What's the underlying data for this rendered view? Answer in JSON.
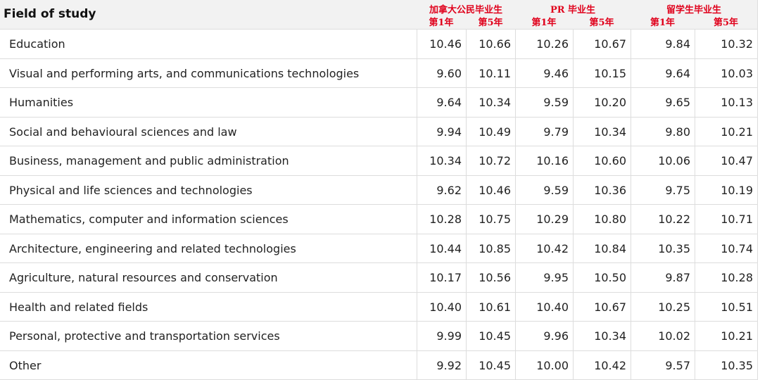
{
  "header": {
    "title": "Field of study",
    "groups": [
      {
        "label": "加拿大公民毕业生",
        "sub": [
          "第1年",
          "第5年"
        ]
      },
      {
        "label": "PR 毕业生",
        "sub": [
          "第1年",
          "第5年"
        ]
      },
      {
        "label": "留学生毕业生",
        "sub": [
          "第1年",
          "第5年"
        ]
      }
    ]
  },
  "table": {
    "rows": [
      [
        "Education",
        "10.46",
        "10.66",
        "10.26",
        "10.67",
        "9.84",
        "10.32"
      ],
      [
        "Visual and performing arts, and communications technologies",
        "9.60",
        "10.11",
        "9.46",
        "10.15",
        "9.64",
        "10.03"
      ],
      [
        "Humanities",
        "9.64",
        "10.34",
        "9.59",
        "10.20",
        "9.65",
        "10.13"
      ],
      [
        "Social and behavioural sciences and law",
        "9.94",
        "10.49",
        "9.79",
        "10.34",
        "9.80",
        "10.21"
      ],
      [
        "Business, management and public administration",
        "10.34",
        "10.72",
        "10.16",
        "10.60",
        "10.06",
        "10.47"
      ],
      [
        "Physical and life sciences and technologies",
        "9.62",
        "10.46",
        "9.59",
        "10.36",
        "9.75",
        "10.19"
      ],
      [
        "Mathematics, computer and information sciences",
        "10.28",
        "10.75",
        "10.29",
        "10.80",
        "10.22",
        "10.71"
      ],
      [
        "Architecture, engineering and related technologies",
        "10.44",
        "10.85",
        "10.42",
        "10.84",
        "10.35",
        "10.74"
      ],
      [
        "Agriculture, natural resources and conservation",
        "10.17",
        "10.56",
        "9.95",
        "10.50",
        "9.87",
        "10.28"
      ],
      [
        "Health and related fields",
        "10.40",
        "10.61",
        "10.40",
        "10.67",
        "10.25",
        "10.51"
      ],
      [
        "Personal, protective and transportation services",
        "9.99",
        "10.45",
        "9.96",
        "10.34",
        "10.02",
        "10.21"
      ],
      [
        "Other",
        "9.92",
        "10.45",
        "10.00",
        "10.42",
        "9.57",
        "10.35"
      ]
    ]
  }
}
